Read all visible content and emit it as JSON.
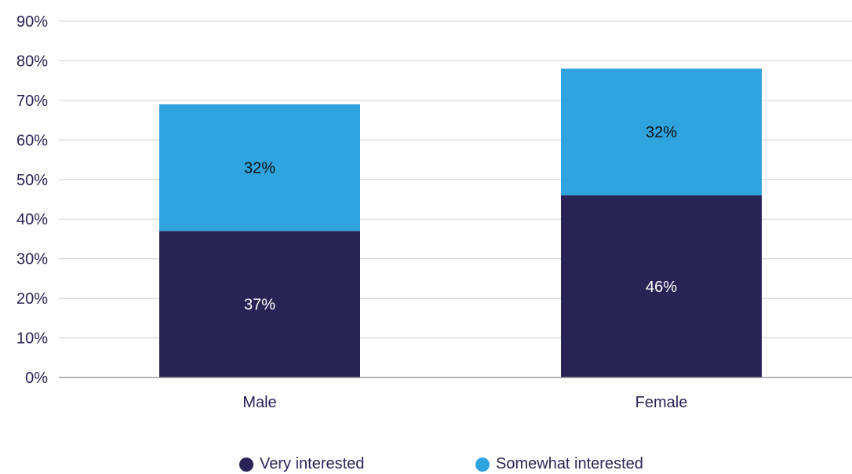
{
  "chart_data": {
    "type": "bar",
    "stacked": true,
    "categories": [
      "Male",
      "Female"
    ],
    "series": [
      {
        "name": "Very interested",
        "values": [
          37,
          46
        ],
        "color": "#2a2355",
        "label_color": "#ffffff"
      },
      {
        "name": "Somewhat interested",
        "values": [
          32,
          32
        ],
        "color": "#2ea3de",
        "label_color": "#111111"
      }
    ],
    "data_labels": [
      [
        "37%",
        "46%"
      ],
      [
        "32%",
        "32%"
      ]
    ],
    "ylim": [
      0,
      90
    ],
    "yticks": [
      "0%",
      "10%",
      "20%",
      "30%",
      "40%",
      "50%",
      "60%",
      "70%",
      "80%",
      "90%"
    ],
    "grid": true,
    "legend_position": "bottom",
    "title": "",
    "xlabel": "",
    "ylabel": ""
  },
  "colors": {
    "axis_text": "#2a2355",
    "grid": "#d9d9d9",
    "axis_line": "#888888"
  }
}
